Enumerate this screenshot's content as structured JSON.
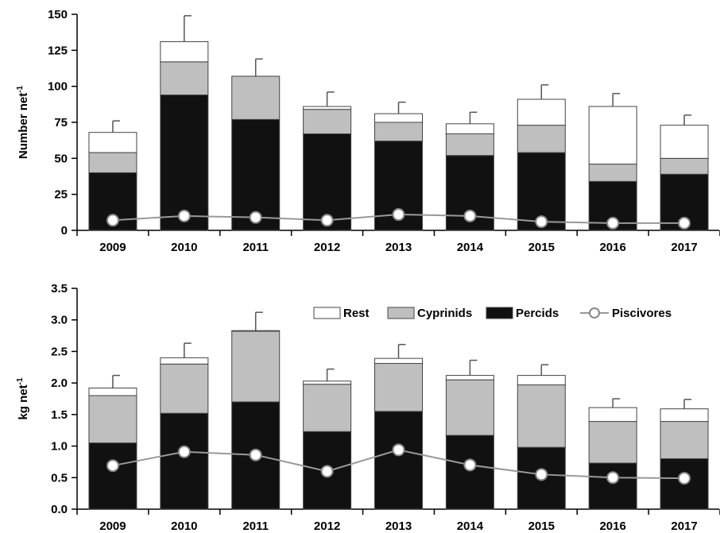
{
  "chart_data": [
    {
      "type": "bar",
      "stacked": true,
      "ylabel": "Number net",
      "ylabel_superscript": "-1",
      "ylim": [
        0,
        150
      ],
      "yticks": [
        "0",
        "25",
        "50",
        "75",
        "100",
        "125",
        "150"
      ],
      "categories": [
        "2009",
        "2010",
        "2011",
        "2012",
        "2013",
        "2014",
        "2015",
        "2016",
        "2017"
      ],
      "series": [
        {
          "name": "Percids",
          "kind": "bar",
          "color": "#111111",
          "values": [
            40,
            94,
            77,
            67,
            62,
            52,
            54,
            34,
            39
          ]
        },
        {
          "name": "Cyprinids",
          "kind": "bar",
          "color": "#bfbfbf",
          "values": [
            14,
            23,
            30,
            17,
            13,
            15,
            19,
            12,
            11
          ]
        },
        {
          "name": "Rest",
          "kind": "bar",
          "color": "#ffffff",
          "values": [
            14,
            14,
            0,
            2,
            6,
            7,
            18,
            40,
            23
          ]
        },
        {
          "name": "Piscivores",
          "kind": "line",
          "color": "#999999",
          "values": [
            7,
            10,
            9,
            7,
            11,
            10,
            6,
            5,
            5
          ]
        }
      ],
      "error_top": [
        76,
        149,
        119,
        96,
        89,
        82,
        101,
        95,
        80
      ]
    },
    {
      "type": "bar",
      "stacked": true,
      "ylabel": "kg net",
      "ylabel_superscript": "-1",
      "ylim": [
        0,
        3.5
      ],
      "yticks": [
        "0.0",
        "0.5",
        "1.0",
        "1.5",
        "2.0",
        "2.5",
        "3.0",
        "3.5"
      ],
      "categories": [
        "2009",
        "2010",
        "2011",
        "2012",
        "2013",
        "2014",
        "2015",
        "2016",
        "2017"
      ],
      "series": [
        {
          "name": "Percids",
          "kind": "bar",
          "color": "#111111",
          "values": [
            1.05,
            1.52,
            1.7,
            1.23,
            1.55,
            1.17,
            0.98,
            0.73,
            0.8
          ]
        },
        {
          "name": "Cyprinids",
          "kind": "bar",
          "color": "#bfbfbf",
          "values": [
            0.75,
            0.78,
            1.12,
            0.75,
            0.76,
            0.88,
            0.99,
            0.66,
            0.59
          ]
        },
        {
          "name": "Rest",
          "kind": "bar",
          "color": "#ffffff",
          "values": [
            0.12,
            0.1,
            0.01,
            0.05,
            0.08,
            0.07,
            0.15,
            0.22,
            0.2
          ]
        },
        {
          "name": "Piscivores",
          "kind": "line",
          "color": "#999999",
          "values": [
            0.69,
            0.91,
            0.86,
            0.6,
            0.94,
            0.7,
            0.55,
            0.5,
            0.49
          ]
        }
      ],
      "error_top": [
        2.12,
        2.63,
        3.12,
        2.22,
        2.61,
        2.36,
        2.29,
        1.75,
        1.74
      ],
      "legend": {
        "placement": "top-right",
        "order": [
          "Rest",
          "Cyprinids",
          "Percids",
          "Piscivores"
        ]
      }
    }
  ]
}
